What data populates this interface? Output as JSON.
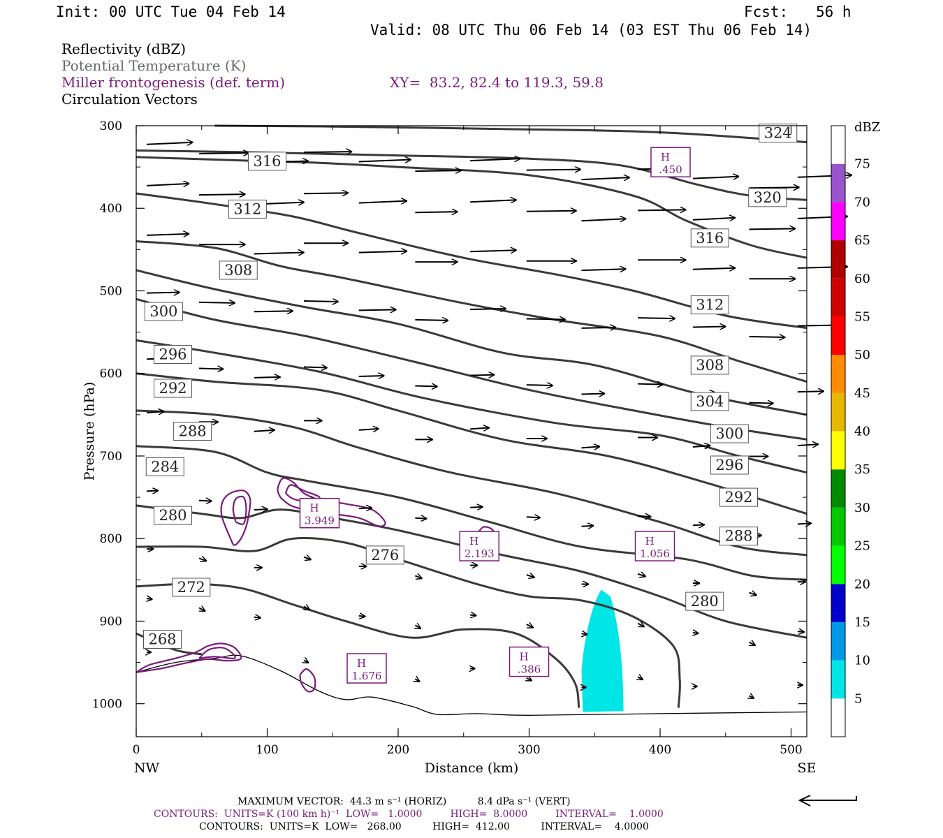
{
  "header": {
    "init": "Init: 00 UTC Tue 04 Feb 14",
    "fcst_label": "Fcst:",
    "fcst_value": "56 h",
    "valid": "Valid: 08 UTC Thu 06 Feb 14 (03 EST Thu 06 Feb 14)"
  },
  "legend": {
    "line1": "Reflectivity (dBZ)",
    "line2": "Potential Temperature (K)",
    "line3": "Miller frontogenesis (def. term)",
    "line4": "Circulation Vectors",
    "xy": "XY=  83.2, 82.4 to 119.3, 59.8"
  },
  "colors": {
    "theta": "#3a3a3a",
    "fronto": "#7a1a7a",
    "refl5": "#00e5e5",
    "gray_text": "#666666"
  },
  "chart_data": {
    "type": "cross-section",
    "xlabel": "Distance (km)",
    "ylabel": "Pressure (hPa)",
    "xlim": [
      0,
      512
    ],
    "ylim": [
      300,
      1040
    ],
    "x_ticks": [
      "0",
      "100",
      "200",
      "300",
      "400",
      "500"
    ],
    "y_ticks": [
      "300",
      "400",
      "500",
      "600",
      "700",
      "800",
      "900",
      "1000"
    ],
    "x_end_labels": {
      "left": "NW",
      "right": "SE"
    },
    "colorbar": {
      "title": "dBZ",
      "labels": [
        "5",
        "10",
        "15",
        "20",
        "25",
        "30",
        "35",
        "40",
        "45",
        "50",
        "55",
        "60",
        "65",
        "70",
        "75"
      ],
      "colors": [
        "#ffffff",
        "#00e5e5",
        "#0099e6",
        "#0000cc",
        "#00ff00",
        "#00c800",
        "#008a00",
        "#ffff00",
        "#e6b800",
        "#ff8c00",
        "#ff0000",
        "#d00000",
        "#b00000",
        "#ff00ff",
        "#9a55cc",
        "#ffffff"
      ]
    },
    "theta_contours": [
      {
        "label": "324",
        "points": [
          [
            60,
            300
          ],
          [
            150,
            301
          ],
          [
            280,
            304
          ],
          [
            400,
            308
          ],
          [
            512,
            320
          ]
        ]
      },
      {
        "label": "320",
        "points": [
          [
            0,
            330
          ],
          [
            80,
            332
          ],
          [
            200,
            336
          ],
          [
            300,
            340
          ],
          [
            370,
            348
          ],
          [
            430,
            372
          ],
          [
            470,
            385
          ],
          [
            512,
            390
          ]
        ]
      },
      {
        "label": "316",
        "points": [
          [
            0,
            338
          ],
          [
            80,
            342
          ],
          [
            140,
            345
          ],
          [
            200,
            350
          ],
          [
            300,
            360
          ],
          [
            380,
            385
          ],
          [
            420,
            415
          ],
          [
            470,
            445
          ],
          [
            512,
            460
          ]
        ]
      },
      {
        "label": "312",
        "points": [
          [
            0,
            382
          ],
          [
            60,
            395
          ],
          [
            120,
            410
          ],
          [
            170,
            430
          ],
          [
            250,
            460
          ],
          [
            320,
            480
          ],
          [
            380,
            500
          ],
          [
            450,
            530
          ],
          [
            512,
            545
          ]
        ]
      },
      {
        "label": "308",
        "points": [
          [
            0,
            440
          ],
          [
            60,
            448
          ],
          [
            110,
            470
          ],
          [
            160,
            485
          ],
          [
            250,
            515
          ],
          [
            320,
            535
          ],
          [
            400,
            555
          ],
          [
            460,
            585
          ],
          [
            512,
            610
          ]
        ]
      },
      {
        "label": "304",
        "points": [
          [
            0,
            475
          ],
          [
            60,
            498
          ],
          [
            130,
            520
          ],
          [
            200,
            540
          ],
          [
            280,
            575
          ],
          [
            350,
            590
          ],
          [
            430,
            625
          ],
          [
            512,
            650
          ]
        ]
      },
      {
        "label": "300",
        "points": [
          [
            0,
            510
          ],
          [
            60,
            535
          ],
          [
            130,
            555
          ],
          [
            210,
            585
          ],
          [
            300,
            620
          ],
          [
            380,
            645
          ],
          [
            450,
            665
          ],
          [
            512,
            680
          ]
        ]
      },
      {
        "label": "296",
        "points": [
          [
            0,
            560
          ],
          [
            60,
            575
          ],
          [
            140,
            598
          ],
          [
            220,
            630
          ],
          [
            320,
            660
          ],
          [
            400,
            675
          ],
          [
            460,
            700
          ],
          [
            512,
            720
          ]
        ]
      },
      {
        "label": "292",
        "points": [
          [
            0,
            600
          ],
          [
            60,
            610
          ],
          [
            140,
            620
          ],
          [
            200,
            645
          ],
          [
            280,
            680
          ],
          [
            360,
            700
          ],
          [
            430,
            730
          ],
          [
            512,
            770
          ]
        ]
      },
      {
        "label": "288",
        "points": [
          [
            0,
            645
          ],
          [
            60,
            650
          ],
          [
            120,
            665
          ],
          [
            170,
            690
          ],
          [
            240,
            720
          ],
          [
            320,
            745
          ],
          [
            400,
            780
          ],
          [
            460,
            810
          ],
          [
            512,
            820
          ]
        ]
      },
      {
        "label": "284",
        "points": [
          [
            0,
            688
          ],
          [
            60,
            695
          ],
          [
            100,
            720
          ],
          [
            130,
            730
          ],
          [
            200,
            750
          ],
          [
            270,
            780
          ],
          [
            340,
            810
          ],
          [
            420,
            825
          ],
          [
            470,
            845
          ],
          [
            512,
            850
          ]
        ]
      },
      {
        "label": "280",
        "points": [
          [
            0,
            760
          ],
          [
            50,
            770
          ],
          [
            80,
            775
          ],
          [
            110,
            765
          ],
          [
            150,
            775
          ],
          [
            200,
            790
          ],
          [
            280,
            820
          ],
          [
            340,
            840
          ],
          [
            400,
            870
          ],
          [
            450,
            900
          ],
          [
            512,
            920
          ]
        ]
      },
      {
        "label": "276",
        "points": [
          [
            0,
            810
          ],
          [
            50,
            810
          ],
          [
            90,
            815
          ],
          [
            120,
            800
          ],
          [
            160,
            805
          ],
          [
            200,
            825
          ],
          [
            260,
            855
          ],
          [
            300,
            870
          ],
          [
            340,
            875
          ],
          [
            380,
            895
          ],
          [
            410,
            930
          ],
          [
            415,
            970
          ],
          [
            414,
            1005
          ]
        ]
      },
      {
        "label": "272",
        "points": [
          [
            0,
            858
          ],
          [
            40,
            855
          ],
          [
            80,
            860
          ],
          [
            120,
            880
          ],
          [
            160,
            900
          ],
          [
            210,
            920
          ],
          [
            250,
            910
          ],
          [
            290,
            915
          ],
          [
            320,
            945
          ],
          [
            335,
            975
          ],
          [
            338,
            1005
          ]
        ]
      },
      {
        "label": "268",
        "points": [
          [
            0,
            915
          ],
          [
            30,
            935
          ],
          [
            50,
            940
          ]
        ]
      }
    ],
    "fronto_maxima": [
      {
        "label": "H",
        "value": ".450"
      },
      {
        "label": "H",
        "value": "3.949"
      },
      {
        "label": "H",
        "value": "2.193"
      },
      {
        "label": "H",
        "value": "1.056"
      },
      {
        "label": "H",
        "value": "1.676"
      },
      {
        "label": "H",
        "value": ".386"
      }
    ],
    "terrain": [
      [
        0,
        962
      ],
      [
        30,
        950
      ],
      [
        60,
        945
      ],
      [
        80,
        942
      ],
      [
        110,
        960
      ],
      [
        140,
        985
      ],
      [
        160,
        995
      ],
      [
        180,
        992
      ],
      [
        210,
        1003
      ],
      [
        230,
        1013
      ],
      [
        260,
        1012
      ],
      [
        300,
        1014
      ],
      [
        400,
        1012
      ],
      [
        512,
        1010
      ]
    ]
  },
  "footer": {
    "max_vector": "MAXIMUM VECTOR:  44.3 m s⁻¹ (HORIZ)          8.4 dPa s⁻¹ (VERT)",
    "contours1": "CONTOURS:  UNITS=K (100 km h)⁻¹  LOW=   1.0000         HIGH=  8.0000         INTERVAL=    1.0000",
    "contours2": "CONTOURS:  UNITS=K  LOW=   268.00          HIGH=  412.00          INTERVAL=    4.0000"
  }
}
